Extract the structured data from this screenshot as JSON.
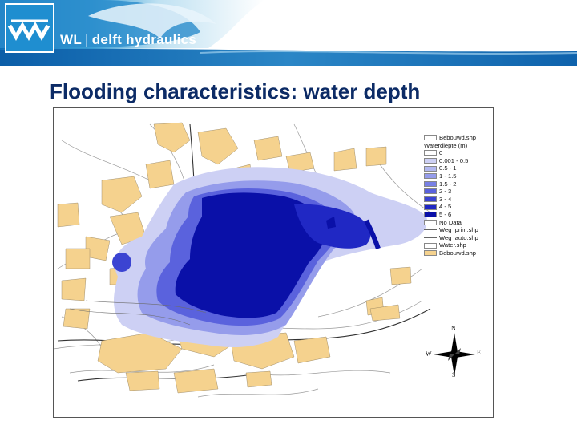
{
  "header": {
    "logo_prefix": "WL",
    "logo_name": "delft hydraulics",
    "brand_color": "#1f8ed0"
  },
  "title": "Flooding characteristics: water depth",
  "legend": {
    "layer_buildings": "Bebouwd.shp",
    "depth_title": "Waterdiepte (m)",
    "classes": [
      {
        "label": "0",
        "color": "#ffffff"
      },
      {
        "label": "0.001 - 0.5",
        "color": "#cdd0f4"
      },
      {
        "label": "0.5 - 1",
        "color": "#b2b8f0"
      },
      {
        "label": "1 - 1.5",
        "color": "#959ceb"
      },
      {
        "label": "1.5 - 2",
        "color": "#7880e5"
      },
      {
        "label": "2 - 3",
        "color": "#5a62dd"
      },
      {
        "label": "3 - 4",
        "color": "#3b44d2"
      },
      {
        "label": "4 - 5",
        "color": "#2028c4"
      },
      {
        "label": "5 - 6",
        "color": "#0a10a8"
      },
      {
        "label": "No Data",
        "color": "#ffffff"
      }
    ],
    "roads_primary": "Weg_prim.shp",
    "roads_auto": "Weg_auto.shp",
    "water": "Water.shp",
    "buildings": "Bebouwd.shp",
    "buildings_color": "#f5d28e"
  },
  "compass": {
    "n": "N",
    "e": "E",
    "s": "S",
    "w": "W"
  }
}
